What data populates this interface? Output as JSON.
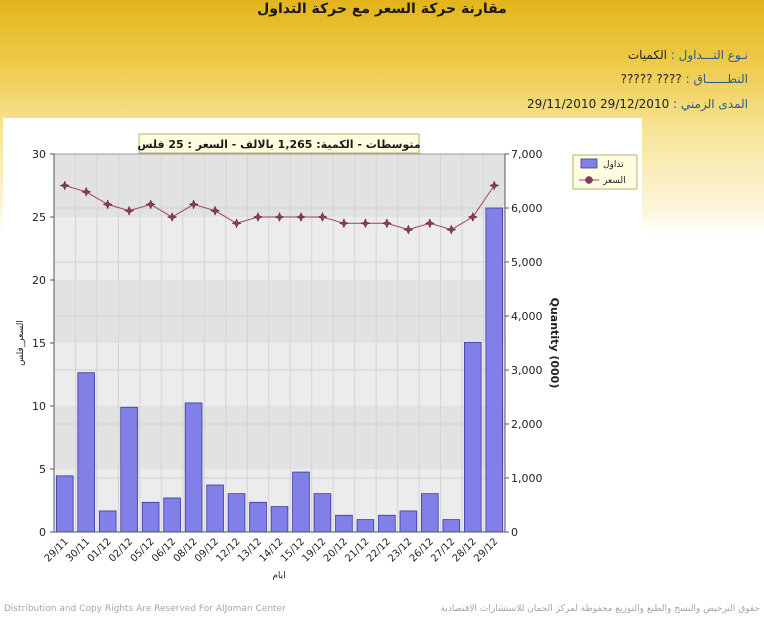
{
  "page": {
    "title": "مقارنة حركة السعر مع حركة التداول",
    "info": [
      {
        "label": "نـوع التـــداول :",
        "value": "الكميات"
      },
      {
        "label": "النطــــــاق :",
        "value": "????     ?????"
      },
      {
        "label": "المدى الزمني :",
        "value": "29/12/2010 29/11/2010"
      }
    ],
    "footer_left": "Distribution and Copy Rights Are Reserved For AlJoman Center",
    "footer_right": "حقوق الترخيص والنسخ والطبع والتوزيع محفوظة لمركز الجمان للاستشارات الاقتصادية"
  },
  "chart_data": {
    "type": "bar",
    "title": "متوسطات - الكمية: 1,265 بالالف  -  السعر : 25 فلس",
    "xlabel": "ايام",
    "ylabel_left": "السعر_فلس",
    "ylabel_right": "Quantity (000)",
    "categories": [
      "29/11",
      "30/11",
      "01/12",
      "02/12",
      "05/12",
      "06/12",
      "08/12",
      "09/12",
      "12/12",
      "13/12",
      "14/12",
      "15/12",
      "19/12",
      "20/12",
      "21/12",
      "22/12",
      "23/12",
      "26/12",
      "27/12",
      "28/12",
      "29/12"
    ],
    "left_axis": {
      "min": 0,
      "max": 30,
      "ticks": [
        "0",
        "5",
        "10",
        "15",
        "20",
        "25",
        "30"
      ]
    },
    "right_axis": {
      "min": 0,
      "max": 7000,
      "ticks": [
        "0",
        "1,000",
        "2,000",
        "3,000",
        "4,000",
        "5,000",
        "6,000",
        "7,000"
      ]
    },
    "series": [
      {
        "name": "تداول",
        "axis": "right",
        "kind": "bar",
        "color": "#8080e8",
        "values": [
          1040,
          2950,
          390,
          2310,
          550,
          630,
          2390,
          870,
          710,
          550,
          470,
          1110,
          710,
          310,
          230,
          310,
          390,
          710,
          230,
          3510,
          6000
        ]
      },
      {
        "name": "السعر",
        "axis": "left",
        "kind": "line",
        "color": "#a04060",
        "values": [
          27.5,
          27.0,
          26.0,
          25.5,
          26.0,
          25.0,
          26.0,
          25.5,
          24.5,
          25.0,
          25.0,
          25.0,
          25.0,
          24.5,
          24.5,
          24.5,
          24.0,
          24.5,
          24.0,
          25.0,
          27.5
        ]
      }
    ],
    "legend_position": "top-right",
    "grid": true
  }
}
